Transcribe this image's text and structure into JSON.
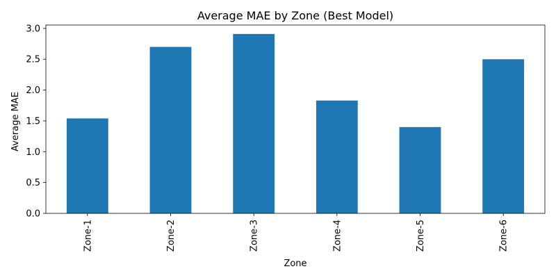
{
  "chart_data": {
    "type": "bar",
    "title": "Average MAE by Zone (Best Model)",
    "xlabel": "Zone",
    "ylabel": "Average MAE",
    "categories": [
      "Zone-1",
      "Zone-2",
      "Zone-3",
      "Zone-4",
      "Zone-5",
      "Zone-6"
    ],
    "values": [
      1.54,
      2.7,
      2.91,
      1.83,
      1.4,
      2.5
    ],
    "ylim": [
      0,
      3.055
    ],
    "yticks": [
      "0.0",
      "0.5",
      "1.0",
      "1.5",
      "2.0",
      "2.5",
      "3.0"
    ],
    "grid": false,
    "legend": "none",
    "bar_color": "#1f77b4"
  }
}
